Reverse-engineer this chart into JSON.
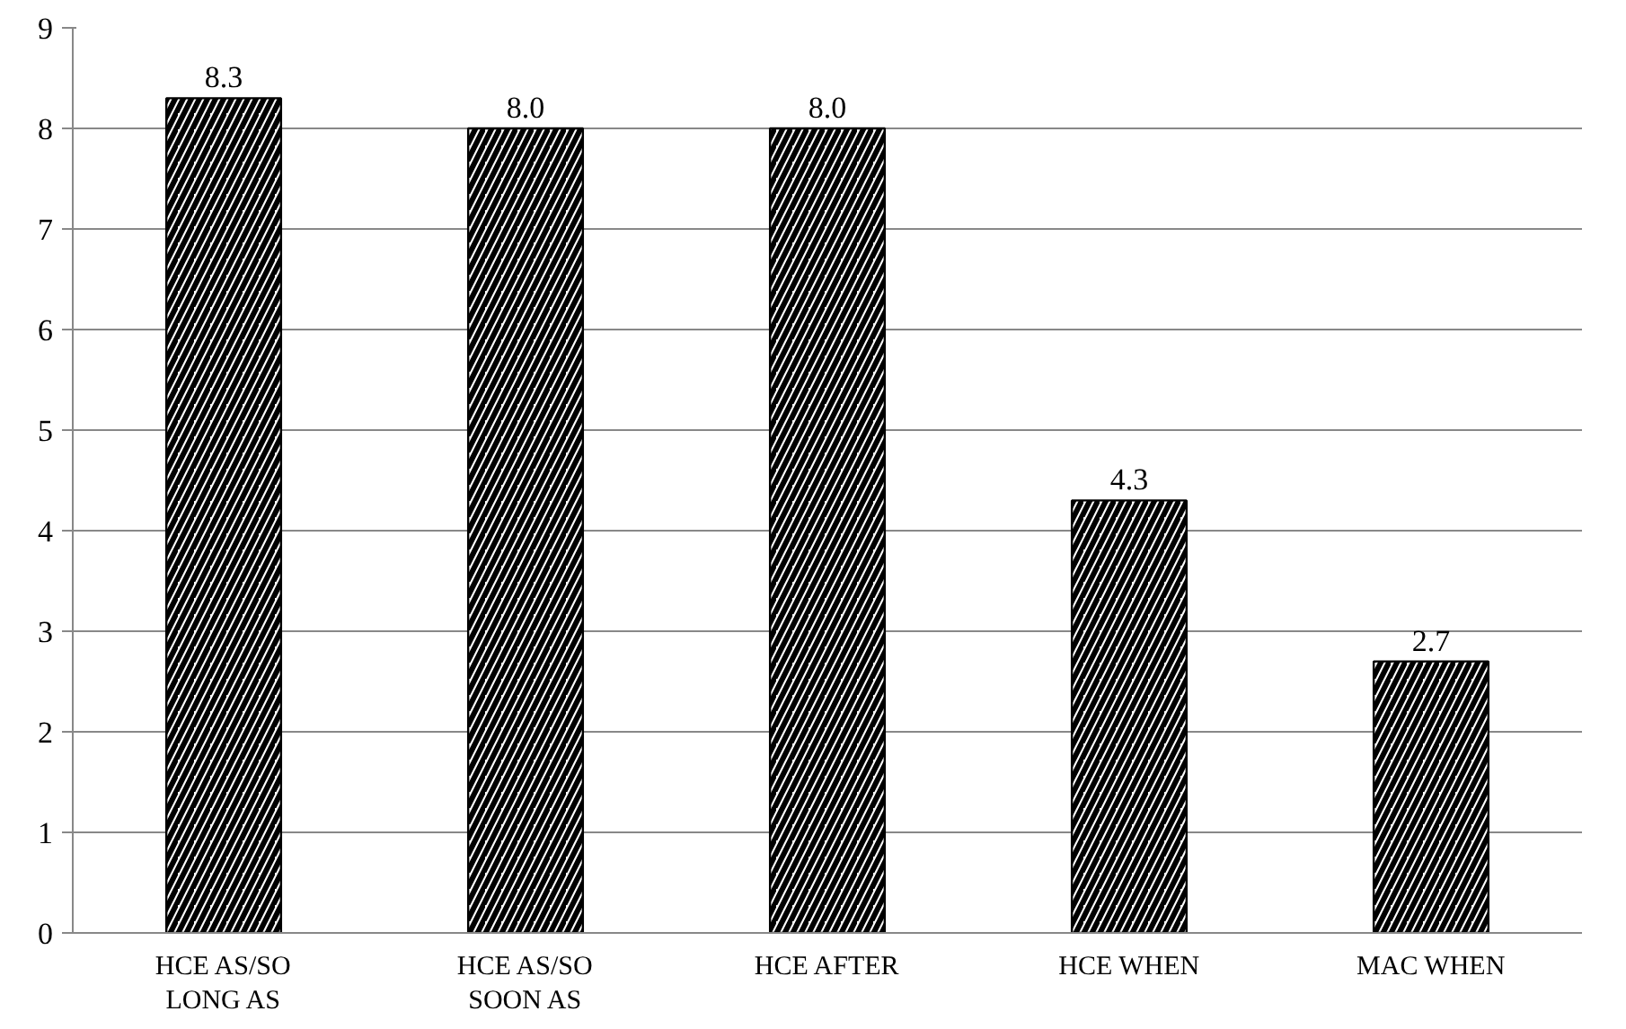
{
  "chart_data": {
    "type": "bar",
    "categories": [
      "HCE AS/SO LONG AS",
      "HCE AS/SO SOON AS",
      "HCE AFTER",
      "HCE WHEN",
      "MAC WHEN"
    ],
    "values": [
      8.3,
      8.0,
      8.0,
      4.3,
      2.7
    ],
    "value_labels": [
      "8.3",
      "8.0",
      "8.0",
      "4.3",
      "2.7"
    ],
    "color": "#000000",
    "ylim": [
      0,
      9
    ],
    "yticks": [
      0,
      1,
      2,
      3,
      4,
      5,
      6,
      7,
      8,
      9
    ],
    "grid": "y"
  }
}
